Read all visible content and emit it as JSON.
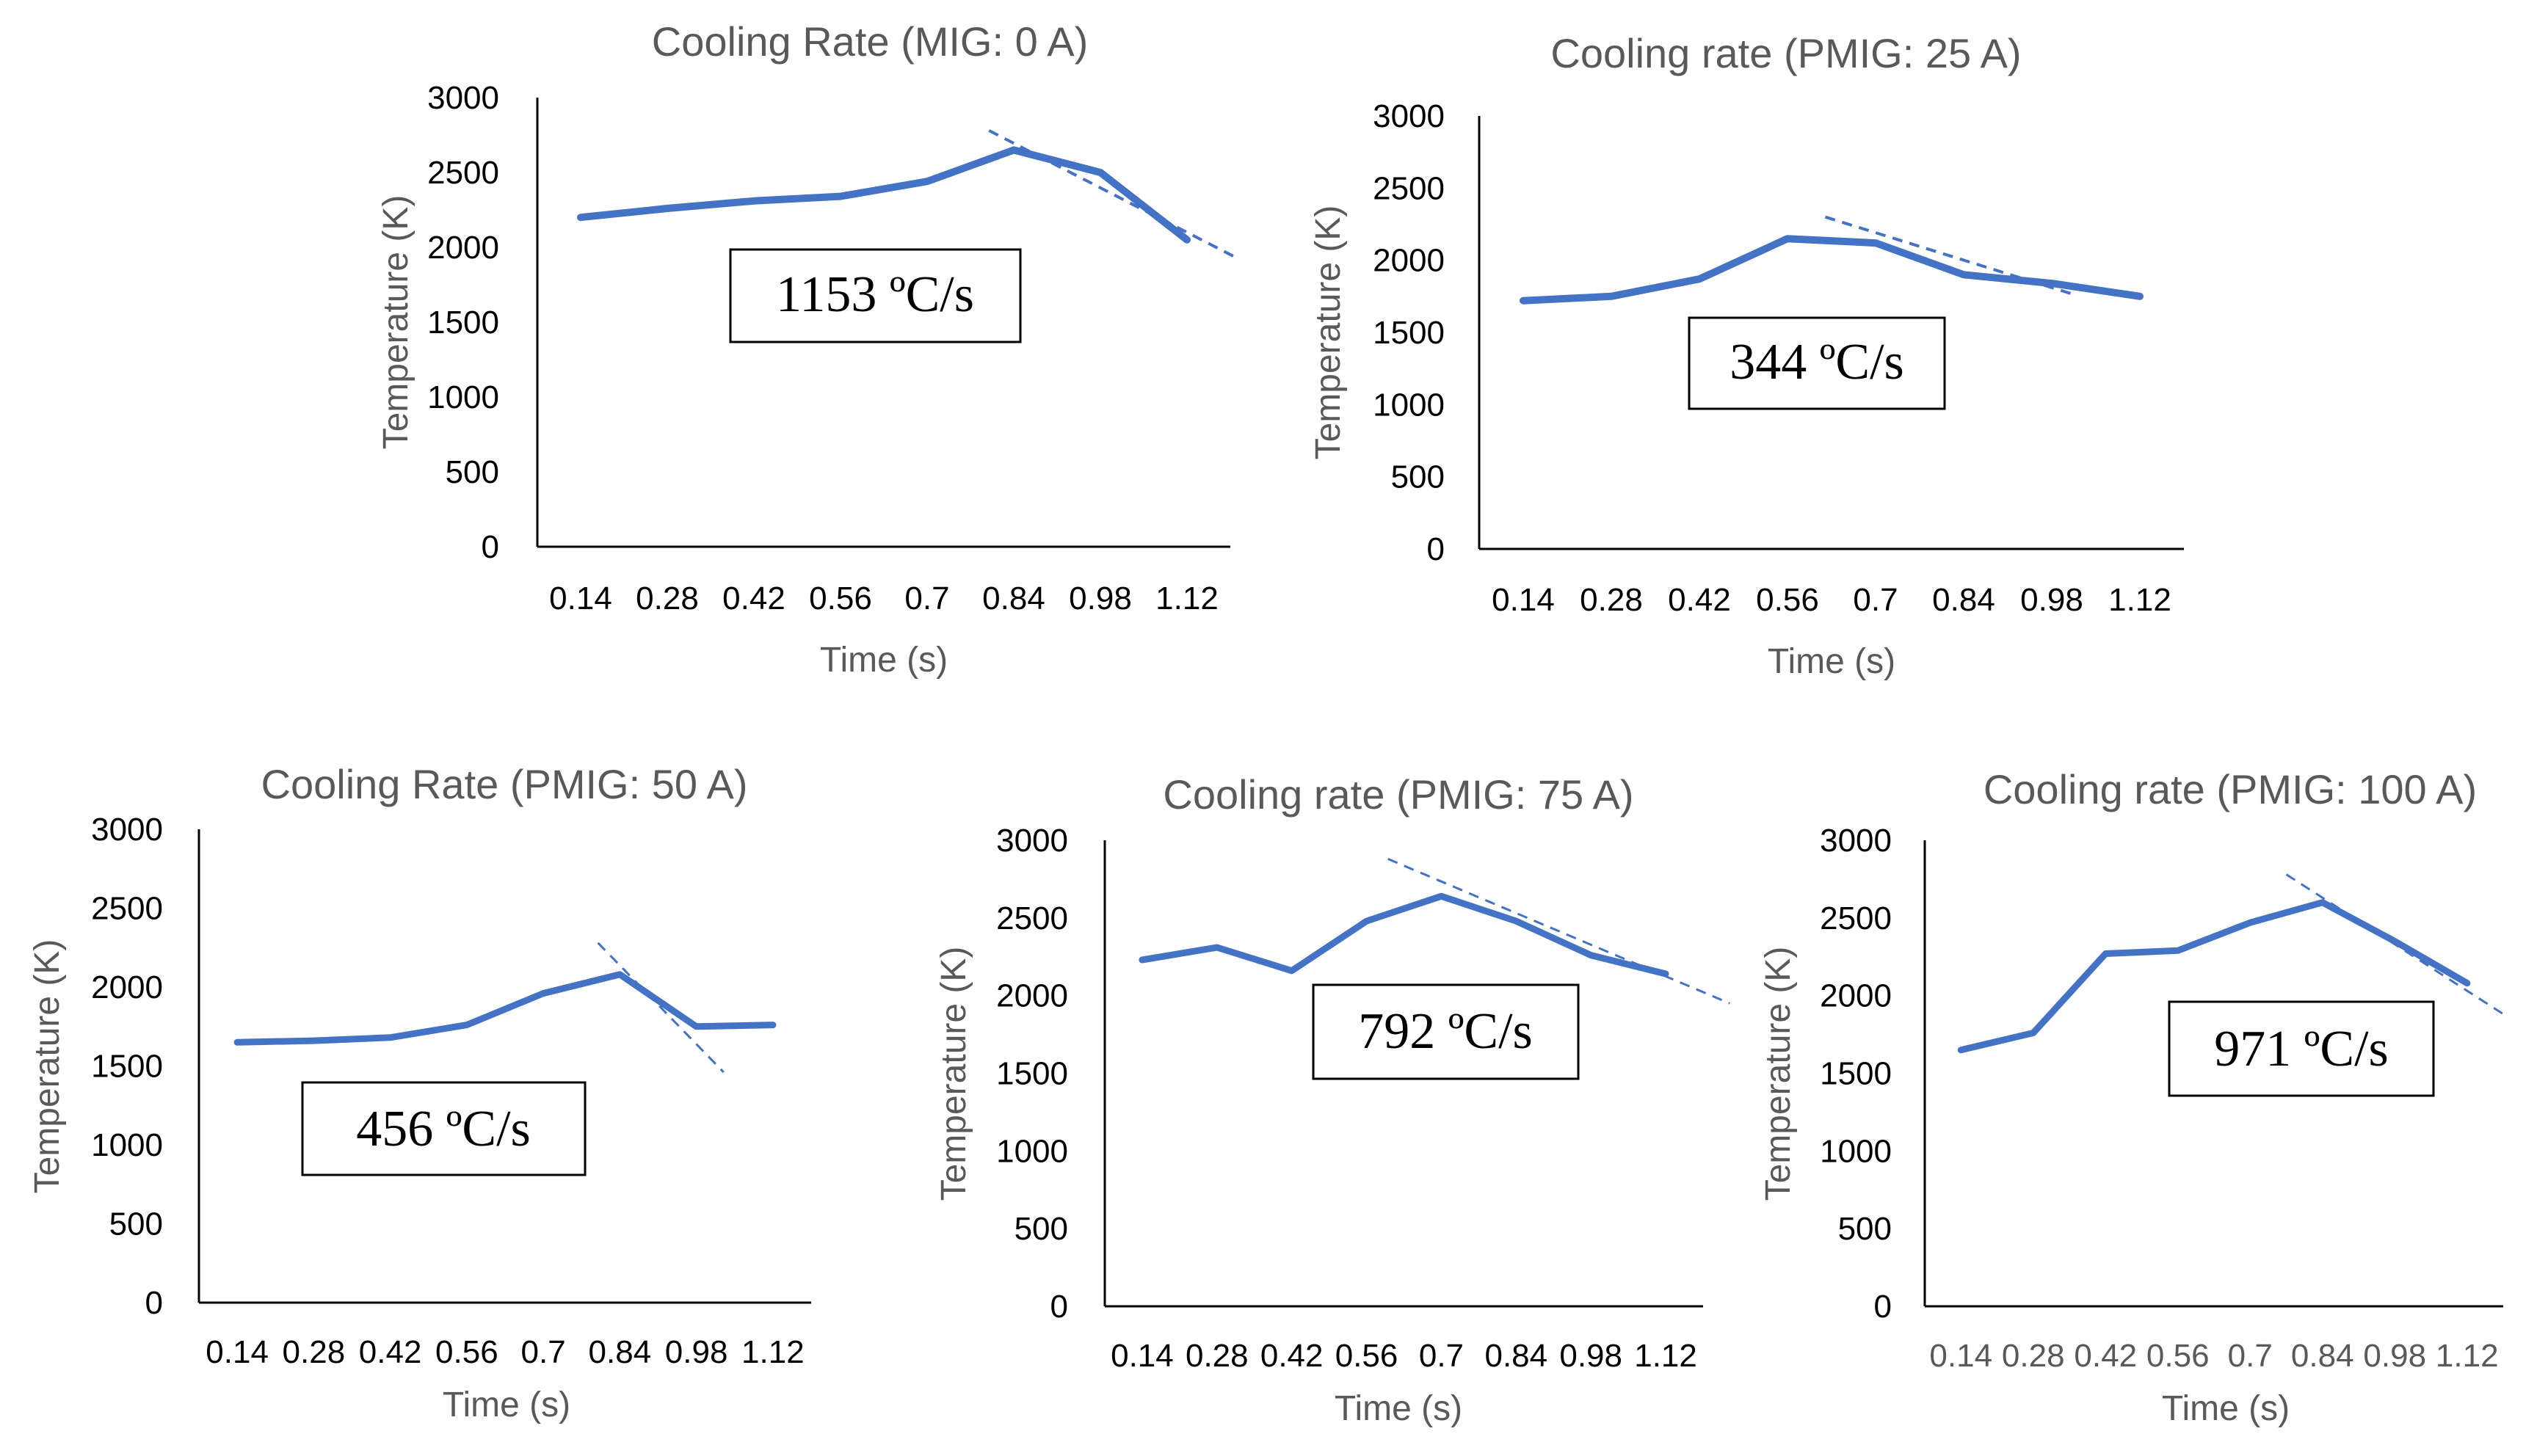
{
  "colors": {
    "series": "#4472C4",
    "trend": "#4472C4",
    "axis": "#000000",
    "title": "#595959"
  },
  "chart_data": [
    {
      "type": "line",
      "title": "Cooling Rate (MIG: 0 A)",
      "xlabel": "Time (s)",
      "ylabel": "Temperature (K)",
      "categories": [
        "0.14",
        "0.28",
        "0.42",
        "0.56",
        "0.7",
        "0.84",
        "0.98",
        "1.12"
      ],
      "y_ticks": [
        "0",
        "500",
        "1000",
        "1500",
        "2000",
        "2500",
        "3000"
      ],
      "ylim": [
        0,
        3000
      ],
      "series": [
        {
          "name": "Temperature",
          "values": [
            2200,
            2260,
            2310,
            2340,
            2440,
            2650,
            2500,
            2050
          ]
        }
      ],
      "trendline": {
        "from": [
          0.8,
          2780
        ],
        "to": [
          1.2,
          1930
        ]
      },
      "annotation": "1153 ºC/s"
    },
    {
      "type": "line",
      "title": "Cooling rate (PMIG: 25 A)",
      "xlabel": "Time (s)",
      "ylabel": "Temperature (K)",
      "categories": [
        "0.14",
        "0.28",
        "0.42",
        "0.56",
        "0.7",
        "0.84",
        "0.98",
        "1.12"
      ],
      "y_ticks": [
        "0",
        "500",
        "1000",
        "1500",
        "2000",
        "2500",
        "3000"
      ],
      "ylim": [
        0,
        3000
      ],
      "series": [
        {
          "name": "Temperature",
          "values": [
            1720,
            1750,
            1870,
            2150,
            2120,
            1900,
            1840,
            1750
          ]
        }
      ],
      "trendline": {
        "from": [
          0.62,
          2300
        ],
        "to": [
          1.01,
          1770
        ]
      },
      "annotation": "344 ºC/s"
    },
    {
      "type": "line",
      "title": "Cooling Rate (PMIG: 50 A)",
      "xlabel": "Time (s)",
      "ylabel": "Temperature (K)",
      "categories": [
        "0.14",
        "0.28",
        "0.42",
        "0.56",
        "0.7",
        "0.84",
        "0.98",
        "1.12"
      ],
      "y_ticks": [
        "0",
        "500",
        "1000",
        "1500",
        "2000",
        "2500",
        "3000"
      ],
      "ylim": [
        0,
        3000
      ],
      "series": [
        {
          "name": "Temperature",
          "values": [
            1650,
            1660,
            1680,
            1760,
            1960,
            2080,
            1750,
            1760
          ]
        }
      ],
      "trendline": {
        "from": [
          0.8,
          2280
        ],
        "to": [
          1.03,
          1460
        ]
      },
      "annotation": "456 ºC/s"
    },
    {
      "type": "line",
      "title": "Cooling rate (PMIG: 75 A)",
      "xlabel": "Time (s)",
      "ylabel": "Temperature (K)",
      "categories": [
        "0.14",
        "0.28",
        "0.42",
        "0.56",
        "0.7",
        "0.84",
        "0.98",
        "1.12"
      ],
      "y_ticks": [
        "0",
        "500",
        "1000",
        "1500",
        "2000",
        "2500",
        "3000"
      ],
      "ylim": [
        0,
        3000
      ],
      "series": [
        {
          "name": "Temperature",
          "values": [
            2230,
            2310,
            2160,
            2480,
            2640,
            2480,
            2260,
            2140
          ]
        }
      ],
      "trendline": {
        "from": [
          0.6,
          2880
        ],
        "to": [
          1.24,
          1950
        ]
      },
      "annotation": "792 ºC/s"
    },
    {
      "type": "line",
      "title": "Cooling rate (PMIG: 100 A)",
      "xlabel": "Time (s)",
      "ylabel": "Temperature (K)",
      "categories": [
        "0.14",
        "0.28",
        "0.42",
        "0.56",
        "0.7",
        "0.84",
        "0.98",
        "1.12"
      ],
      "x_tick_color": "grey",
      "y_ticks": [
        "0",
        "500",
        "1000",
        "1500",
        "2000",
        "2500",
        "3000"
      ],
      "ylim": [
        0,
        3000
      ],
      "series": [
        {
          "name": "Temperature",
          "values": [
            1650,
            1760,
            2270,
            2290,
            2470,
            2600,
            2350,
            2080
          ]
        }
      ],
      "trendline": {
        "from": [
          0.77,
          2780
        ],
        "to": [
          1.2,
          1860
        ]
      },
      "annotation": "971 ºC/s"
    }
  ]
}
